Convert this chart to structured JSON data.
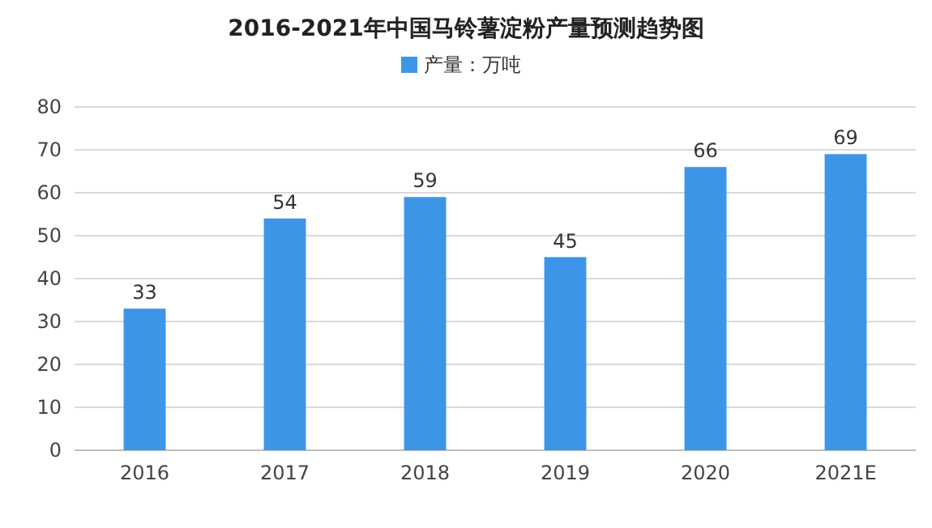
{
  "chart_data": {
    "type": "bar",
    "title": "2016-2021年中国马铃薯淀粉产量预测趋势图",
    "categories": [
      "2016",
      "2017",
      "2018",
      "2019",
      "2020",
      "2021E"
    ],
    "series": [
      {
        "name": "产量：万吨",
        "color": "#3d95e8",
        "values": [
          33,
          54,
          59,
          45,
          66,
          69
        ]
      }
    ],
    "ylim": [
      0,
      80
    ],
    "yticks": [
      0,
      10,
      20,
      30,
      40,
      50,
      60,
      70,
      80
    ],
    "grid": "y",
    "legend": "top",
    "data_labels": true
  }
}
